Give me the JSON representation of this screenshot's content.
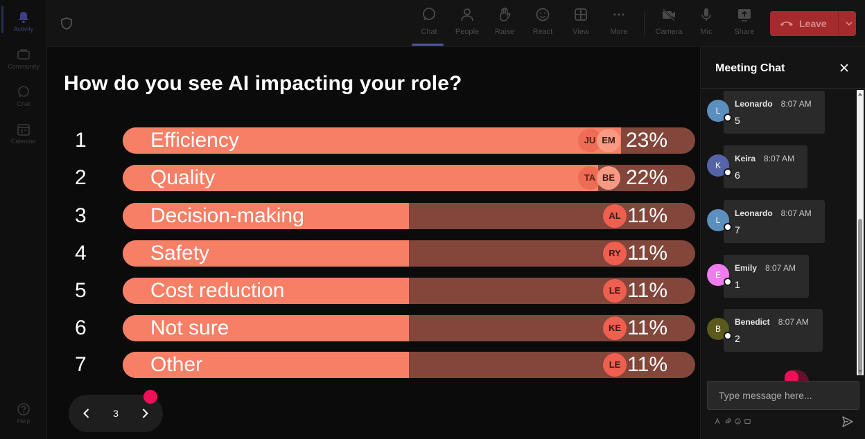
{
  "rail": {
    "items": [
      {
        "label": "Activity",
        "icon": "bell-icon"
      },
      {
        "label": "Community",
        "icon": "community-icon"
      },
      {
        "label": "Chat",
        "icon": "chat-icon"
      },
      {
        "label": "Calendar",
        "icon": "calendar-icon"
      }
    ],
    "help": {
      "label": "Help",
      "icon": "help-icon"
    }
  },
  "toolbar": {
    "shield_icon": "shield-icon",
    "buttons": [
      {
        "label": "Chat",
        "icon": "chat-icon"
      },
      {
        "label": "People",
        "icon": "people-icon"
      },
      {
        "label": "Raise",
        "icon": "hand-icon"
      },
      {
        "label": "React",
        "icon": "smile-icon"
      },
      {
        "label": "View",
        "icon": "grid-icon"
      },
      {
        "label": "More",
        "icon": "more-icon"
      },
      {
        "label": "Camera",
        "icon": "camera-off-icon"
      },
      {
        "label": "Mic",
        "icon": "mic-icon"
      },
      {
        "label": "Share",
        "icon": "share-icon"
      }
    ],
    "leave_label": "Leave"
  },
  "poll": {
    "question": "How do you see AI impacting your role?",
    "options": [
      {
        "num": "1",
        "label": "Efficiency",
        "percent": "23%",
        "fill": 0.87,
        "avatars": [
          "JU",
          "EM"
        ]
      },
      {
        "num": "2",
        "label": "Quality",
        "percent": "22%",
        "fill": 0.83,
        "avatars": [
          "TA",
          "BE"
        ]
      },
      {
        "num": "3",
        "label": "Decision-making",
        "percent": "11%",
        "fill": 0.5,
        "avatars": [
          "AL"
        ]
      },
      {
        "num": "4",
        "label": "Safety",
        "percent": "11%",
        "fill": 0.5,
        "avatars": [
          "RY"
        ]
      },
      {
        "num": "5",
        "label": "Cost reduction",
        "percent": "11%",
        "fill": 0.5,
        "avatars": [
          "LE"
        ]
      },
      {
        "num": "6",
        "label": "Not sure",
        "percent": "11%",
        "fill": 0.5,
        "avatars": [
          "KE"
        ]
      },
      {
        "num": "7",
        "label": "Other",
        "percent": "11%",
        "fill": 0.5,
        "avatars": [
          "LE"
        ]
      }
    ]
  },
  "pager": {
    "page": "3"
  },
  "chat": {
    "title": "Meeting Chat",
    "messages": [
      {
        "initial": "L",
        "name": "Leonardo",
        "time": "8:07 AM",
        "text": "5",
        "color": "#5b8fbd"
      },
      {
        "initial": "K",
        "name": "Keira",
        "time": "8:07 AM",
        "text": "6",
        "color": "#5563a8"
      },
      {
        "initial": "L",
        "name": "Leonardo",
        "time": "8:07 AM",
        "text": "7",
        "color": "#5b8fbd"
      },
      {
        "initial": "E",
        "name": "Emily",
        "time": "8:07 AM",
        "text": "1",
        "color": "#f07cf0"
      },
      {
        "initial": "B",
        "name": "Benedict",
        "time": "8:07 AM",
        "text": "2",
        "color": "#5b5a1c"
      }
    ],
    "compose_placeholder": "Type message here..."
  },
  "colors": {
    "bar_fill": "#f67f66",
    "bar_track": "#82463a",
    "leave": "#a42a2e",
    "pointer": "#f0105a"
  }
}
